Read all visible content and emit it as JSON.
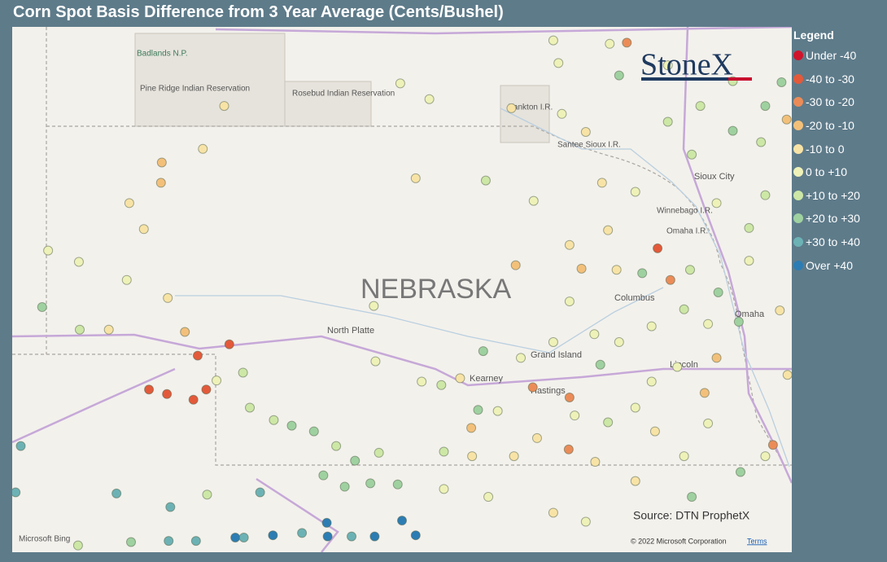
{
  "map": {
    "title": "Corn Spot Basis Difference from 3 Year Average (Cents/Bushel)",
    "legend_title": "Legend",
    "legend": [
      {
        "label": "Under -40",
        "color": "#d0142c"
      },
      {
        "label": "-40 to -30",
        "color": "#e35a3a"
      },
      {
        "label": "-30 to -20",
        "color": "#eb8c58"
      },
      {
        "label": "-20 to -10",
        "color": "#f3c07a"
      },
      {
        "label": "-10 to 0",
        "color": "#f8e3a6"
      },
      {
        "label": "0 to +10",
        "color": "#eef2b8"
      },
      {
        "label": "+10 to +20",
        "color": "#cde7a6"
      },
      {
        "label": "+20 to +30",
        "color": "#9fd1a0"
      },
      {
        "label": "+30 to +40",
        "color": "#6cb2b5"
      },
      {
        "label": "Over +40",
        "color": "#2c7db3"
      }
    ],
    "logo": "StoneX",
    "source": "Source: DTN ProphetX",
    "bing": "Microsoft Bing",
    "copyright": "© 2022 Microsoft Corporation",
    "terms": "Terms",
    "places": [
      "NEBRASKA",
      "North Platte",
      "Kearney",
      "Grand Island",
      "Hastings",
      "Columbus",
      "Omaha",
      "Lincoln",
      "Sioux City",
      "Winnebago I.R.",
      "Omaha I.R.",
      "Santee Sioux I.R.",
      "Yankton I.R.",
      "Badlands N.P.",
      "Pine Ridge Indian Reservation",
      "Rosebud Indian Reservation"
    ],
    "lonlim": [
      -104.45,
      -95.33
    ],
    "latlim": [
      39.23,
      43.88
    ],
    "points": [
      [
        -101.97,
        43.18,
        4
      ],
      [
        -102.22,
        42.8,
        4
      ],
      [
        -102.7,
        42.68,
        3
      ],
      [
        -102.71,
        42.5,
        3
      ],
      [
        -103.08,
        42.32,
        4
      ],
      [
        -102.91,
        42.09,
        4
      ],
      [
        -103.67,
        41.8,
        5
      ],
      [
        -103.11,
        41.64,
        5
      ],
      [
        -104.03,
        41.9,
        5
      ],
      [
        -104.1,
        41.4,
        7
      ],
      [
        -103.66,
        41.2,
        6
      ],
      [
        -103.32,
        41.2,
        4
      ],
      [
        -102.63,
        41.48,
        4
      ],
      [
        -102.43,
        41.18,
        3
      ],
      [
        -102.28,
        40.97,
        1
      ],
      [
        -101.91,
        41.07,
        1
      ],
      [
        -102.85,
        40.67,
        1
      ],
      [
        -102.64,
        40.63,
        1
      ],
      [
        -102.33,
        40.58,
        1
      ],
      [
        -102.18,
        40.67,
        1
      ],
      [
        -102.06,
        40.75,
        5
      ],
      [
        -101.75,
        40.82,
        6
      ],
      [
        -101.67,
        40.51,
        6
      ],
      [
        -101.39,
        40.4,
        6
      ],
      [
        -101.18,
        40.35,
        7
      ],
      [
        -100.92,
        40.3,
        7
      ],
      [
        -100.66,
        40.17,
        6
      ],
      [
        -100.44,
        40.04,
        7
      ],
      [
        -100.16,
        40.11,
        6
      ],
      [
        -104.35,
        40.17,
        8
      ],
      [
        -104.41,
        39.76,
        8
      ],
      [
        -103.23,
        39.75,
        8
      ],
      [
        -102.6,
        39.63,
        8
      ],
      [
        -102.17,
        39.74,
        6
      ],
      [
        -101.55,
        39.76,
        8
      ],
      [
        -100.81,
        39.91,
        7
      ],
      [
        -100.56,
        39.81,
        7
      ],
      [
        -100.26,
        39.84,
        7
      ],
      [
        -99.94,
        39.83,
        7
      ],
      [
        -103.68,
        39.29,
        6
      ],
      [
        -103.06,
        39.32,
        7
      ],
      [
        -102.62,
        39.33,
        8
      ],
      [
        -102.3,
        39.33,
        8
      ],
      [
        -101.84,
        39.36,
        9
      ],
      [
        -101.74,
        39.36,
        8
      ],
      [
        -101.4,
        39.38,
        9
      ],
      [
        -101.06,
        39.4,
        8
      ],
      [
        -100.77,
        39.49,
        9
      ],
      [
        -100.76,
        39.37,
        9
      ],
      [
        -100.48,
        39.37,
        8
      ],
      [
        -100.21,
        39.37,
        9
      ],
      [
        -99.89,
        39.51,
        9
      ],
      [
        -99.73,
        39.38,
        9
      ],
      [
        -99.91,
        43.38,
        5
      ],
      [
        -99.57,
        43.24,
        5
      ],
      [
        -100.22,
        41.41,
        5
      ],
      [
        -100.2,
        40.92,
        5
      ],
      [
        -99.73,
        42.54,
        4
      ],
      [
        -98.91,
        42.52,
        6
      ],
      [
        -98.94,
        41.01,
        7
      ],
      [
        -99.66,
        40.74,
        5
      ],
      [
        -99.43,
        40.71,
        6
      ],
      [
        -99.21,
        40.77,
        4
      ],
      [
        -99.0,
        40.49,
        7
      ],
      [
        -98.61,
        43.16,
        4
      ],
      [
        -98.06,
        43.56,
        5
      ],
      [
        -97.46,
        43.73,
        5
      ],
      [
        -97.26,
        43.74,
        2
      ],
      [
        -97.35,
        43.45,
        7
      ],
      [
        -96.9,
        41.92,
        1
      ],
      [
        -97.08,
        41.7,
        7
      ],
      [
        -96.75,
        41.64,
        2
      ],
      [
        -96.19,
        41.53,
        7
      ],
      [
        -95.95,
        41.27,
        7
      ],
      [
        -95.64,
        43.18,
        7
      ],
      [
        -95.45,
        43.39,
        7
      ],
      [
        -95.69,
        42.86,
        6
      ],
      [
        -95.39,
        43.06,
        3
      ],
      [
        -95.47,
        41.37,
        4
      ],
      [
        -95.64,
        40.08,
        5
      ],
      [
        -95.55,
        40.18,
        2
      ],
      [
        -95.38,
        40.8,
        4
      ],
      [
        -97.94,
        40.14,
        2
      ],
      [
        -97.63,
        40.03,
        4
      ],
      [
        -98.36,
        40.69,
        2
      ],
      [
        -97.93,
        40.6,
        2
      ],
      [
        -97.57,
        40.89,
        7
      ],
      [
        -97.48,
        40.38,
        6
      ],
      [
        -97.87,
        40.44,
        5
      ],
      [
        -98.31,
        40.24,
        4
      ],
      [
        -98.58,
        40.08,
        4
      ],
      [
        -98.77,
        40.48,
        5
      ],
      [
        -99.08,
        40.33,
        3
      ],
      [
        -99.4,
        40.12,
        6
      ],
      [
        -97.93,
        41.95,
        4
      ],
      [
        -97.48,
        42.08,
        4
      ],
      [
        -97.16,
        42.42,
        5
      ],
      [
        -97.55,
        42.5,
        4
      ],
      [
        -97.74,
        42.95,
        4
      ],
      [
        -98.35,
        42.34,
        5
      ],
      [
        -98.56,
        41.77,
        3
      ],
      [
        -97.79,
        41.74,
        3
      ],
      [
        -97.38,
        41.73,
        4
      ],
      [
        -96.52,
        41.73,
        6
      ],
      [
        -96.31,
        41.25,
        5
      ],
      [
        -96.21,
        40.95,
        3
      ],
      [
        -96.35,
        40.64,
        3
      ],
      [
        -96.67,
        40.87,
        5
      ],
      [
        -96.97,
        40.74,
        5
      ],
      [
        -97.16,
        40.51,
        5
      ],
      [
        -96.93,
        40.3,
        4
      ],
      [
        -96.59,
        40.08,
        5
      ],
      [
        -96.31,
        40.37,
        5
      ],
      [
        -97.35,
        41.09,
        5
      ],
      [
        -97.64,
        41.16,
        5
      ],
      [
        -98.12,
        41.09,
        5
      ],
      [
        -98.5,
        40.95,
        5
      ],
      [
        -99.07,
        40.08,
        4
      ],
      [
        -99.4,
        39.79,
        5
      ],
      [
        -98.88,
        39.72,
        5
      ],
      [
        -98.12,
        39.58,
        4
      ],
      [
        -97.74,
        39.5,
        5
      ],
      [
        -97.16,
        39.86,
        4
      ],
      [
        -96.5,
        39.72,
        7
      ],
      [
        -95.93,
        39.94,
        7
      ],
      [
        -96.78,
        43.04,
        6
      ],
      [
        -96.4,
        43.18,
        6
      ],
      [
        -96.02,
        42.96,
        7
      ],
      [
        -96.5,
        42.75,
        6
      ],
      [
        -96.21,
        42.32,
        5
      ],
      [
        -95.83,
        42.1,
        6
      ],
      [
        -95.64,
        42.39,
        6
      ],
      [
        -95.83,
        41.81,
        5
      ],
      [
        -96.02,
        43.4,
        6
      ],
      [
        -96.78,
        43.54,
        5
      ],
      [
        -98.12,
        43.76,
        5
      ],
      [
        -98.02,
        43.11,
        5
      ],
      [
        -96.97,
        41.23,
        5
      ],
      [
        -96.59,
        41.38,
        6
      ],
      [
        -97.93,
        41.45,
        5
      ]
    ]
  }
}
